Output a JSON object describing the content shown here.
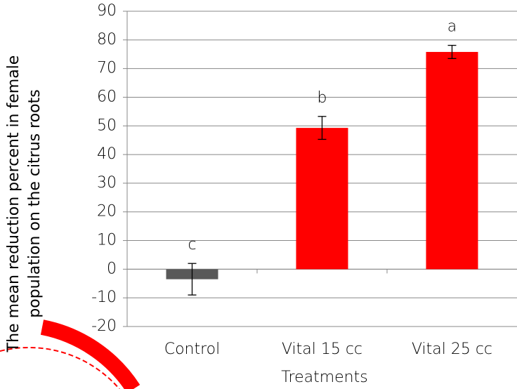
{
  "chart_data": {
    "type": "bar",
    "y_label": "The mean reduction percent in female population on the citrus roots",
    "x_label": "Treatments",
    "categories": [
      "Control",
      "Vital 15 cc",
      "Vital 25 cc"
    ],
    "values": [
      -3.5,
      49.3,
      75.8
    ],
    "errors": [
      5.5,
      4.0,
      2.3
    ],
    "annotations": [
      "c",
      "b",
      "a"
    ],
    "colors": [
      "#595959",
      "#ff0000",
      "#ff0000"
    ],
    "ylim": [
      -20,
      90
    ],
    "yticks": [
      -20,
      -10,
      0,
      10,
      20,
      30,
      40,
      50,
      60,
      70,
      80,
      90
    ],
    "grid": true
  }
}
